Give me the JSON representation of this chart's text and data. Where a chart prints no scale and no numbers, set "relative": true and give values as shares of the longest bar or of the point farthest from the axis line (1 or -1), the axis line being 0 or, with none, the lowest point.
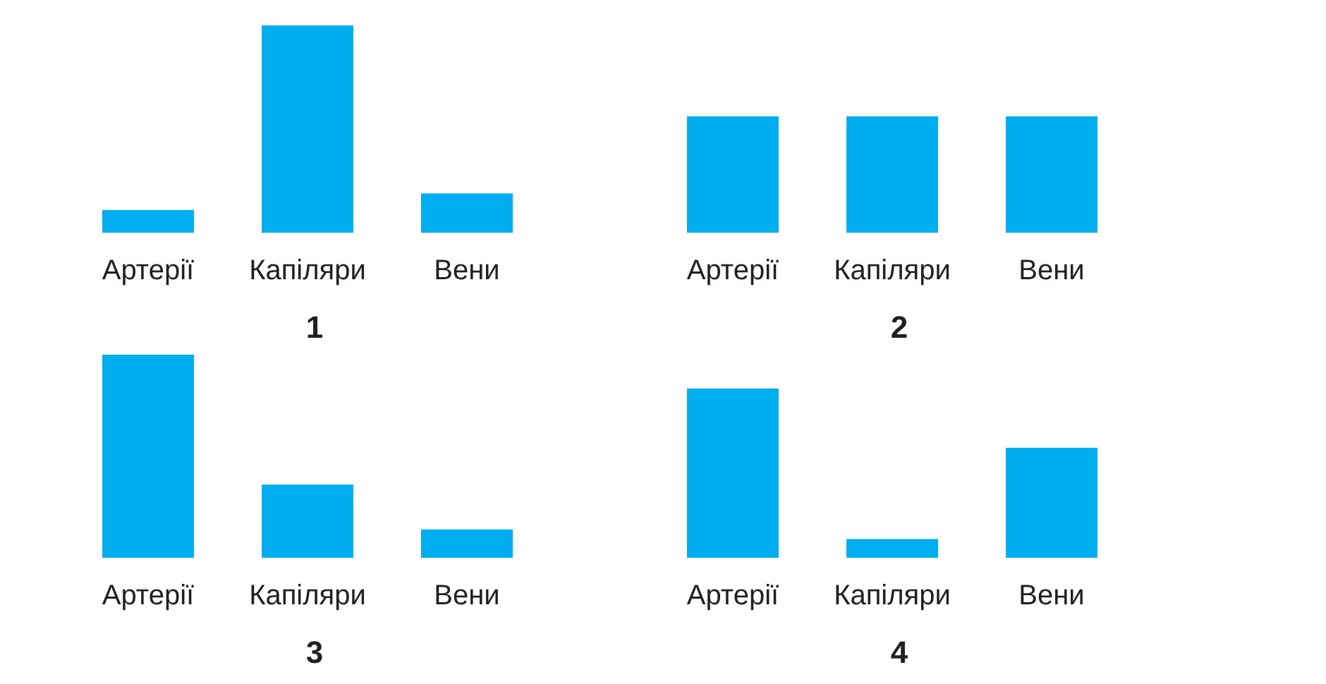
{
  "chart_data": [
    {
      "type": "bar",
      "title": "1",
      "categories": [
        "Артерії",
        "Капіляри",
        "Вени"
      ],
      "values": [
        0.11,
        1,
        0.19
      ],
      "color": "#00aeef",
      "relative": true
    },
    {
      "type": "bar",
      "title": "2",
      "categories": [
        "Артерії",
        "Капіляри",
        "Вени"
      ],
      "values": [
        1,
        1,
        1
      ],
      "color": "#00aeef",
      "relative": true
    },
    {
      "type": "bar",
      "title": "3",
      "categories": [
        "Артерії",
        "Капіляри",
        "Вени"
      ],
      "values": [
        1,
        0.36,
        0.14
      ],
      "color": "#00aeef",
      "relative": true
    },
    {
      "type": "bar",
      "title": "4",
      "categories": [
        "Артерії",
        "Капіляри",
        "Вени"
      ],
      "values": [
        1,
        0.11,
        0.65
      ],
      "color": "#00aeef",
      "relative": true
    }
  ]
}
